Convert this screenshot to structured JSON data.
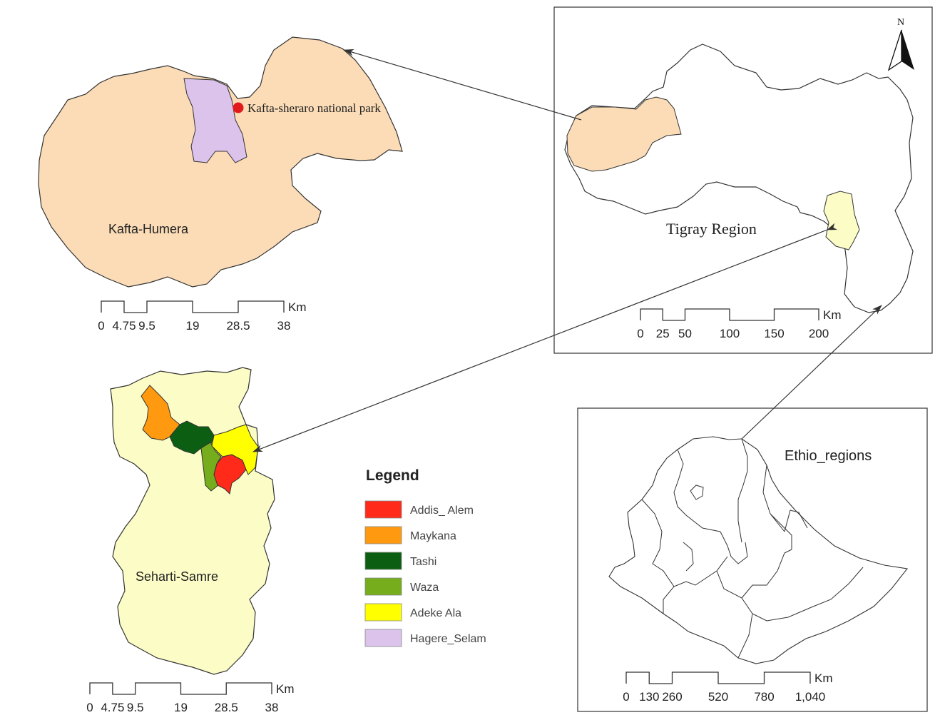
{
  "north_arrow": {
    "label": "N",
    "icon": "north-arrow-icon"
  },
  "kafta_map": {
    "district_label": "Kafta-Humera",
    "park_label": "Kafta-sheraro national park",
    "district_color": "#fbdcb6",
    "park_area_color": "#dcc3ec",
    "park_point_color": "#e31a1c",
    "scale": {
      "unit": "Km",
      "ticks": [
        "0",
        "4.75",
        "9.5",
        "19",
        "28.5",
        "38"
      ]
    }
  },
  "tigray_map": {
    "region_label": "Tigray Region",
    "scale": {
      "unit": "Km",
      "ticks": [
        "0",
        "25",
        "50",
        "100",
        "150",
        "200"
      ]
    }
  },
  "seharti_map": {
    "district_label": "Seharti-Samre",
    "district_color": "#fcfcc6",
    "scale": {
      "unit": "Km",
      "ticks": [
        "0",
        "4.75",
        "9.5",
        "19",
        "28.5",
        "38"
      ]
    }
  },
  "ethiopia_map": {
    "label": "Ethio_regions",
    "scale": {
      "unit": "Km",
      "ticks": [
        "0",
        "130",
        "260",
        "520",
        "780",
        "1,040"
      ]
    }
  },
  "legend": {
    "title": "Legend",
    "items": [
      {
        "label": "Addis_ Alem",
        "color": "#ff2a1a"
      },
      {
        "label": "Maykana",
        "color": "#ff9a10"
      },
      {
        "label": "Tashi",
        "color": "#0c5f12"
      },
      {
        "label": "Waza",
        "color": "#75ad1c"
      },
      {
        "label": "Adeke Ala",
        "color": "#ffff00"
      },
      {
        "label": "Hagere_Selam",
        "color": "#dcc3ec"
      }
    ]
  }
}
